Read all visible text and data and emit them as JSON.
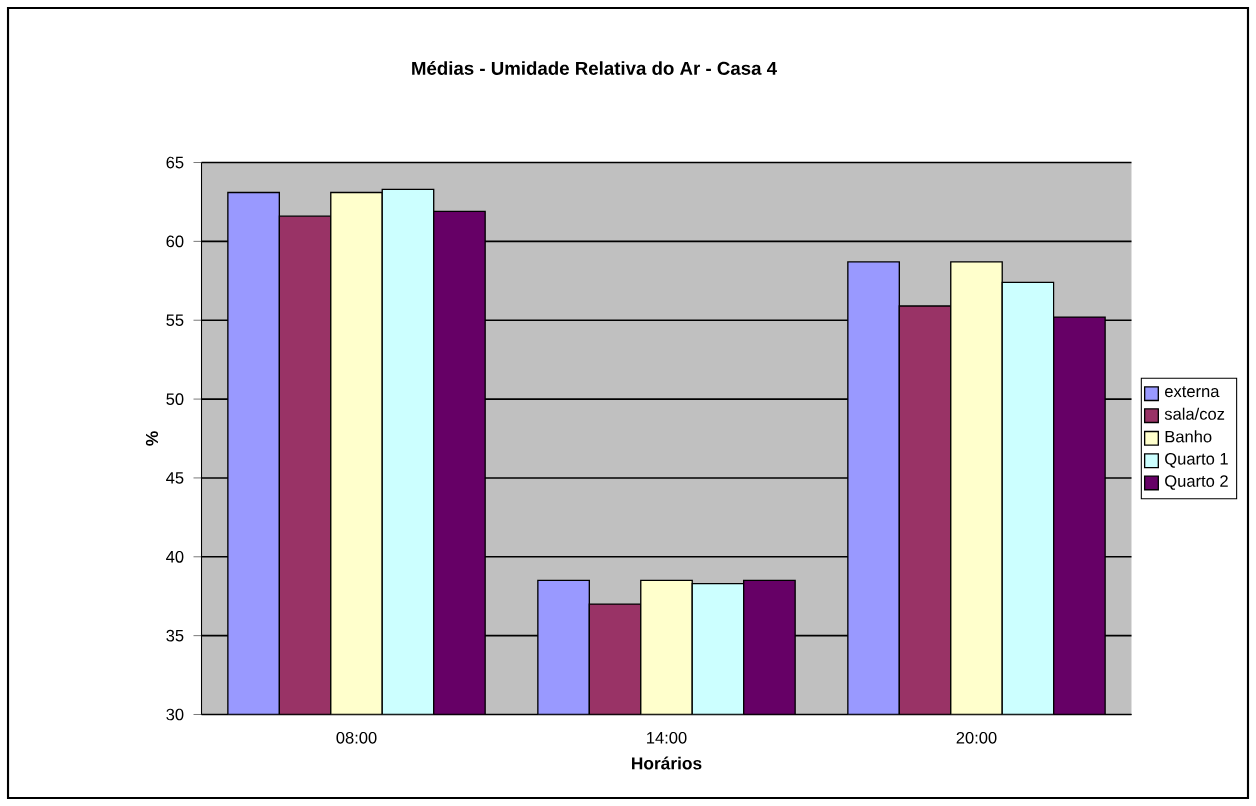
{
  "chart_data": {
    "type": "bar",
    "title": "Médias - Umidade Relativa do Ar - Casa 4",
    "xlabel": "Horários",
    "ylabel": "%",
    "categories": [
      "08:00",
      "14:00",
      "20:00"
    ],
    "series": [
      {
        "name": "externa",
        "color": "#9999ff",
        "values": [
          63.1,
          38.5,
          58.7
        ]
      },
      {
        "name": "sala/coz",
        "color": "#993366",
        "values": [
          61.6,
          37.0,
          55.9
        ]
      },
      {
        "name": "Banho",
        "color": "#ffffcc",
        "values": [
          63.1,
          38.5,
          58.7
        ]
      },
      {
        "name": "Quarto 1",
        "color": "#ccffff",
        "values": [
          63.3,
          38.3,
          57.4
        ]
      },
      {
        "name": "Quarto 2",
        "color": "#660066",
        "values": [
          61.9,
          38.5,
          55.2
        ]
      }
    ],
    "ylim": [
      30,
      65
    ],
    "yticks": [
      30,
      35,
      40,
      45,
      50,
      55,
      60,
      65
    ],
    "grid": "y",
    "legend": "right"
  }
}
